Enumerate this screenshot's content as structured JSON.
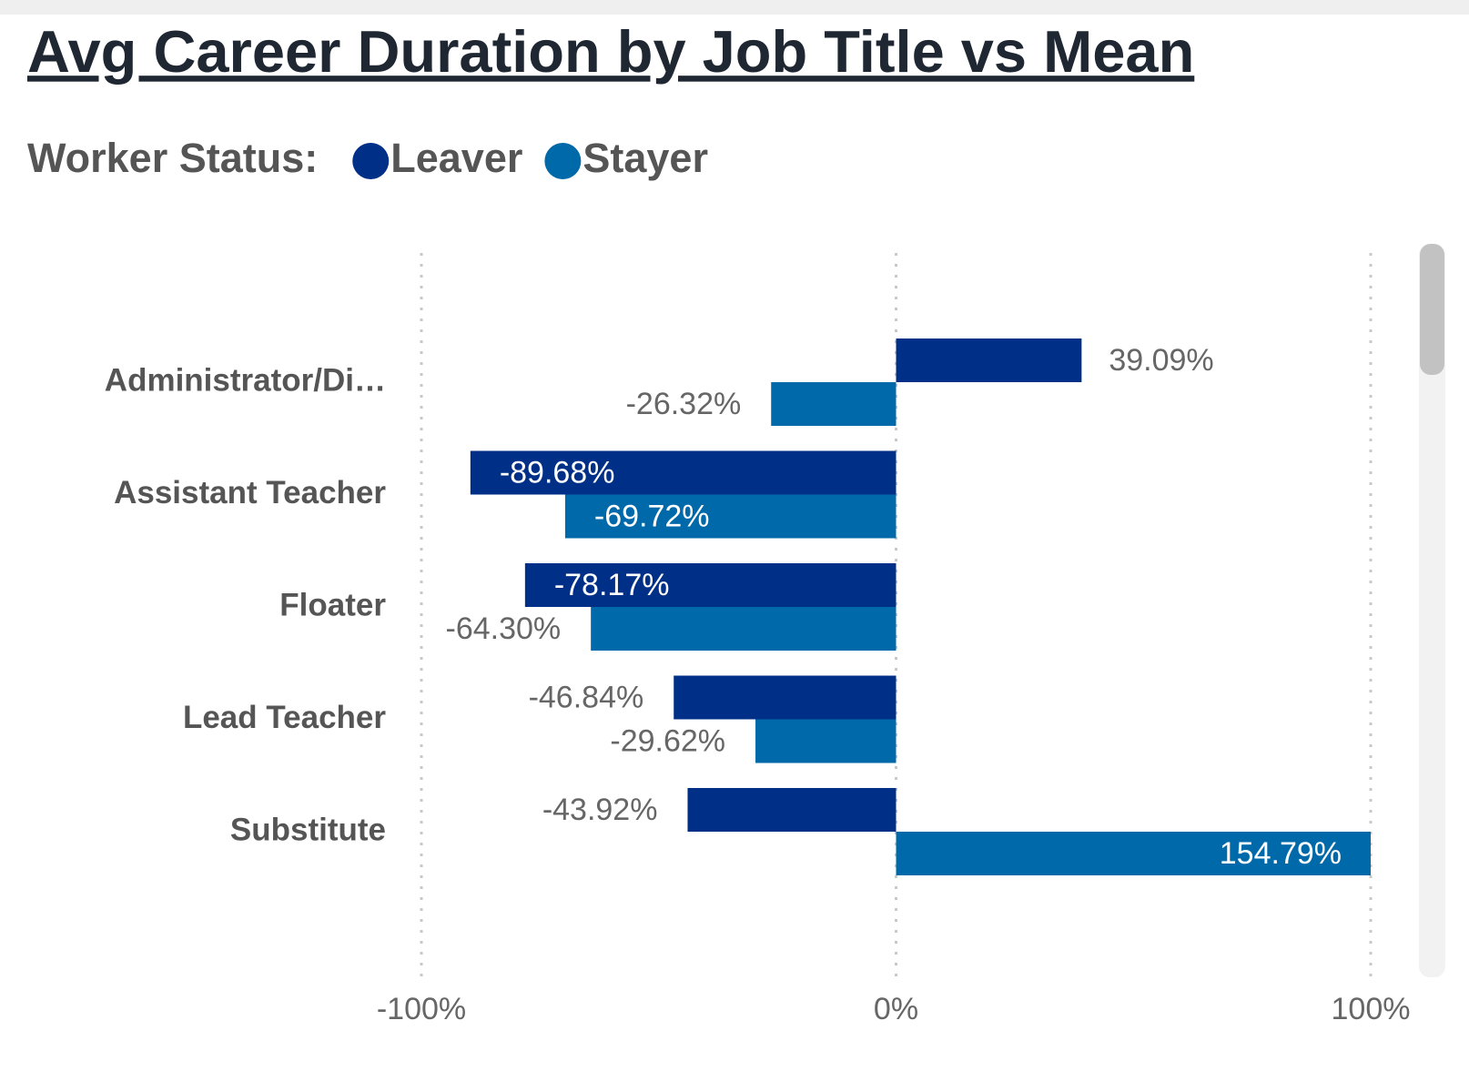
{
  "chart_data": {
    "type": "hbar",
    "title": "Avg Career Duration by Job Title vs Mean",
    "legend_title": "Worker Status:",
    "categories": [
      "Administrator/Di…",
      "Assistant Teacher",
      "Floater",
      "Lead Teacher",
      "Substitute"
    ],
    "series": [
      {
        "name": "Leaver",
        "color": "#002f87",
        "values": [
          39.09,
          -89.68,
          -78.17,
          -46.84,
          -43.92
        ],
        "value_labels": [
          "39.09%",
          "-89.68%",
          "-78.17%",
          "-46.84%",
          "-43.92%"
        ]
      },
      {
        "name": "Stayer",
        "color": "#0069aa",
        "values": [
          -26.32,
          -69.72,
          -64.3,
          -29.62,
          154.79
        ],
        "value_labels": [
          "-26.32%",
          "-69.72%",
          "-64.30%",
          "-29.62%",
          "154.79%"
        ]
      }
    ],
    "xlim": [
      -100,
      100
    ],
    "xticks": [
      {
        "value": -100,
        "label": "-100%"
      },
      {
        "value": 0,
        "label": "0%"
      },
      {
        "value": 100,
        "label": "100%"
      }
    ],
    "grid": true
  }
}
